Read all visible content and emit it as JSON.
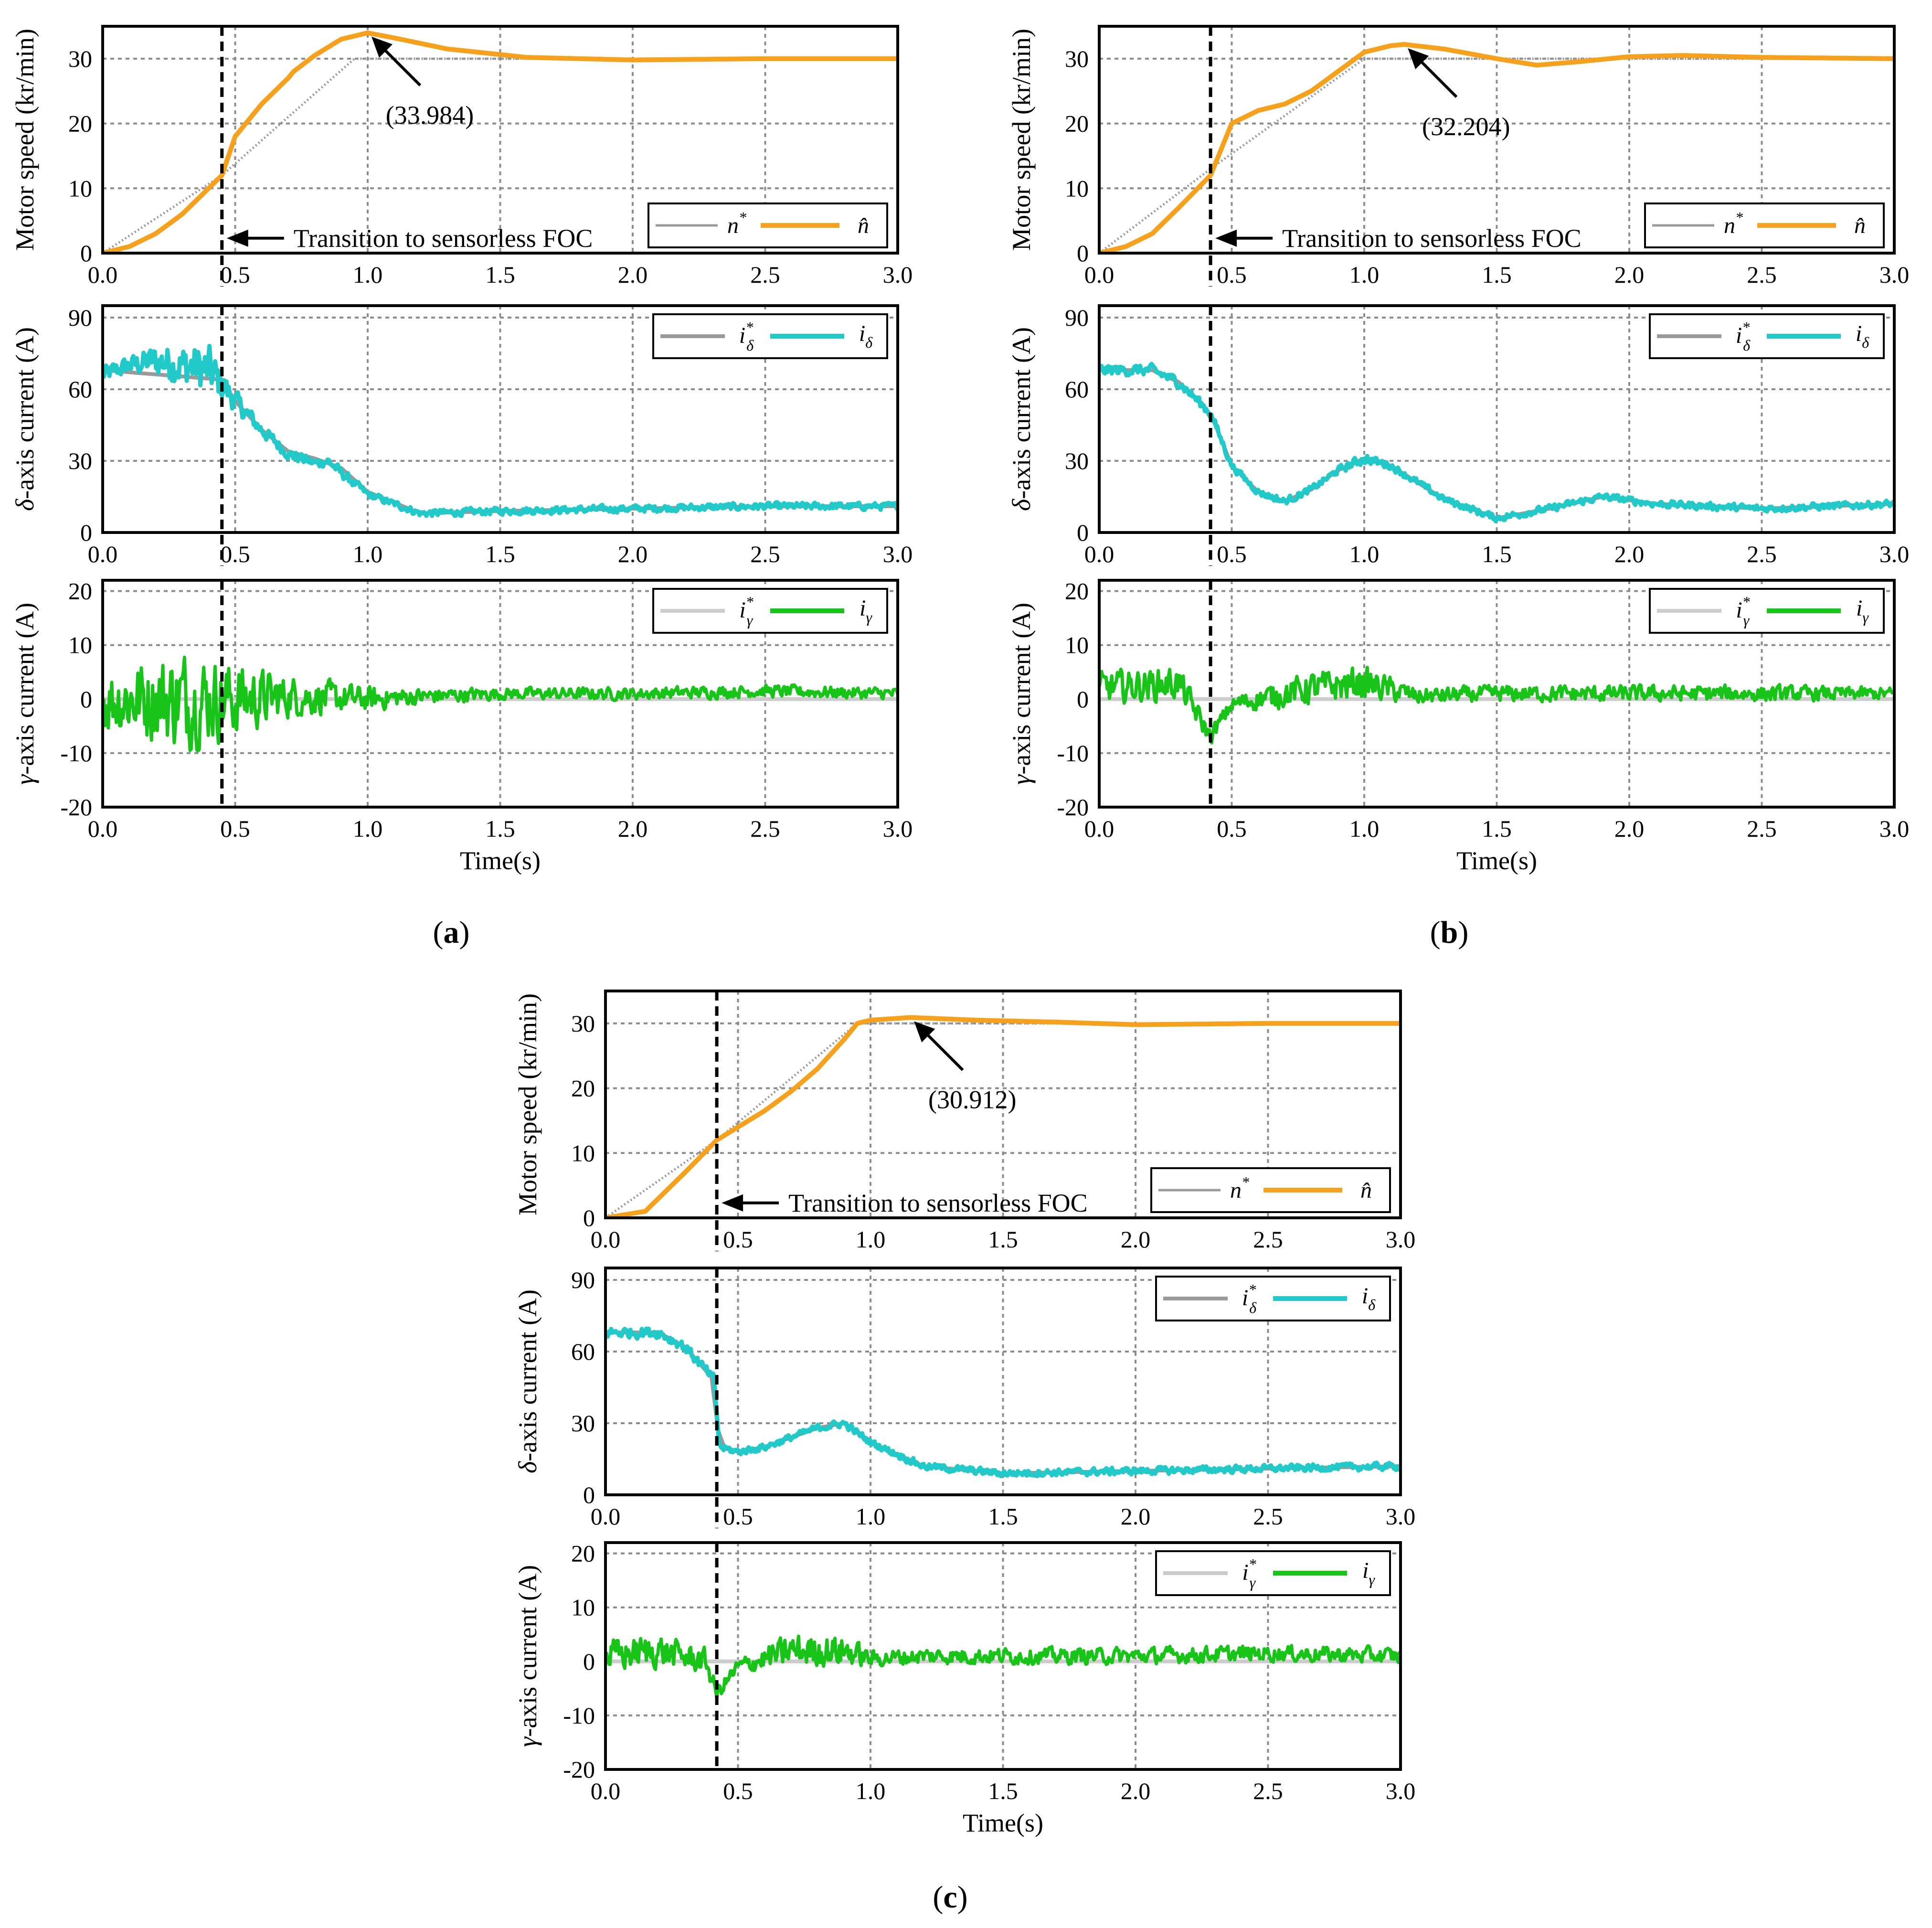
{
  "figure": {
    "common": {
      "x_label": "Time(s)",
      "x_range": [
        0,
        3
      ],
      "x_ticks": [
        "0.0",
        "0.5",
        "1.0",
        "1.5",
        "2.0",
        "2.5",
        "3.0"
      ],
      "transition_label": "Transition to sensorless FOC",
      "speed": {
        "ylabel": "Motor speed (kr/min)",
        "y_range": [
          0,
          35
        ],
        "y_ticks": [
          "0",
          "10",
          "20",
          "30"
        ],
        "legend_ref": "n",
        "legend_ref_sup": "*",
        "legend_est": "n̂"
      },
      "delta": {
        "ylabel_symbol": "δ",
        "ylabel_rest": "-axis current (A)",
        "y_range": [
          0,
          95
        ],
        "y_ticks": [
          "0",
          "30",
          "60",
          "90"
        ],
        "legend_ref": "i",
        "legend_ref_sub": "δ",
        "legend_ref_sup": "*",
        "legend_meas": "i",
        "legend_meas_sub": "δ"
      },
      "gamma": {
        "ylabel_symbol": "γ",
        "ylabel_rest": "-axis current (A)",
        "y_range": [
          -20,
          22
        ],
        "y_ticks": [
          "-20",
          "-10",
          "0",
          "10",
          "20"
        ],
        "legend_ref": "i",
        "legend_ref_sub": "γ",
        "legend_ref_sup": "*",
        "legend_meas": "i",
        "legend_meas_sub": "γ"
      }
    },
    "colors": {
      "reference": "#9a9a9a",
      "speed": "#f5a11d",
      "delta": "#22c9c9",
      "gamma": "#19c419",
      "grid": "#8c8c8c"
    },
    "captions": [
      "a",
      "b",
      "c"
    ]
  },
  "chart_data": [
    {
      "type": "line",
      "panel": "a",
      "transition_time": 0.45,
      "peak_annotation": "(33.984)",
      "peak_time": 1.0,
      "peak_value": 33.984,
      "speed": {
        "reference": {
          "name": "n*",
          "x": [
            0,
            0.45,
            0.95,
            3.0
          ],
          "y": [
            0,
            12,
            30,
            30
          ]
        },
        "estimate": {
          "name": "n̂",
          "x": [
            0,
            0.1,
            0.2,
            0.3,
            0.4,
            0.45,
            0.5,
            0.6,
            0.7,
            0.72,
            0.8,
            0.9,
            1.0,
            1.1,
            1.3,
            1.6,
            2.0,
            2.5,
            3.0
          ],
          "y": [
            0,
            1,
            3,
            6,
            10,
            12,
            18,
            23,
            27,
            28,
            30.5,
            33,
            33.984,
            33.2,
            31.5,
            30.2,
            29.8,
            30,
            30
          ]
        }
      },
      "delta": {
        "reference": {
          "name": "iδ*",
          "x": [
            0,
            0.45,
            0.5,
            0.6,
            0.7,
            0.8,
            0.9,
            1.0,
            1.2,
            1.5,
            2.0,
            2.5,
            3.0
          ],
          "y": [
            68,
            64,
            55,
            43,
            34,
            31,
            27,
            17,
            8,
            9,
            10,
            11,
            11
          ]
        },
        "measured": {
          "name": "iδ",
          "x": [
            0,
            0.1,
            0.2,
            0.3,
            0.4,
            0.45,
            0.5,
            0.6,
            0.7,
            0.8,
            0.85,
            0.9,
            1.0,
            1.2,
            1.5,
            2.0,
            2.5,
            3.0
          ],
          "y": [
            66,
            70,
            72,
            70,
            68,
            62,
            55,
            43,
            33,
            29,
            30,
            25,
            16,
            8,
            9,
            10,
            11,
            11
          ],
          "noise": [
            5,
            5,
            9,
            12,
            14,
            10,
            6,
            4,
            3,
            3,
            3,
            3,
            2,
            2,
            2,
            2,
            2,
            2
          ]
        }
      },
      "gamma": {
        "reference": {
          "name": "iγ*",
          "x": [
            0,
            3.0
          ],
          "y": [
            0,
            0
          ]
        },
        "measured": {
          "name": "iγ",
          "x": [
            0,
            0.3,
            0.5,
            0.7,
            1.0,
            1.2,
            1.5,
            2.0,
            2.5,
            3.0
          ],
          "y": [
            0,
            0,
            0,
            0.5,
            0,
            0.5,
            1,
            1,
            1.5,
            1
          ],
          "noise": [
            8,
            12,
            9,
            5,
            3,
            2,
            1.5,
            1.5,
            1.5,
            1.5
          ]
        }
      }
    },
    {
      "type": "line",
      "panel": "b",
      "transition_time": 0.42,
      "peak_annotation": "(32.204)",
      "peak_time": 1.15,
      "peak_value": 32.204,
      "speed": {
        "reference": {
          "name": "n*",
          "x": [
            0,
            0.42,
            1.0,
            3.0
          ],
          "y": [
            0,
            13,
            30,
            30
          ]
        },
        "estimate": {
          "name": "n̂",
          "x": [
            0,
            0.1,
            0.2,
            0.3,
            0.42,
            0.45,
            0.5,
            0.6,
            0.7,
            0.8,
            0.9,
            1.0,
            1.1,
            1.15,
            1.3,
            1.5,
            1.65,
            1.8,
            2.0,
            2.2,
            2.5,
            3.0
          ],
          "y": [
            0,
            1,
            3,
            7,
            12,
            15,
            20,
            22,
            23,
            25,
            28,
            31,
            32,
            32.204,
            31.5,
            30,
            29,
            29.5,
            30.3,
            30.5,
            30.2,
            30
          ]
        }
      },
      "delta": {
        "reference": {
          "name": "iδ*",
          "x": [
            0,
            0.2,
            0.3,
            0.42,
            0.5,
            0.6,
            0.7,
            0.8,
            0.9,
            1.0,
            1.1,
            1.3,
            1.5,
            1.7,
            1.9,
            2.1,
            2.5,
            3.0
          ],
          "y": [
            68,
            68,
            63,
            50,
            28,
            17,
            13,
            18,
            26,
            31,
            28,
            14,
            6,
            10,
            15,
            12,
            10,
            12
          ]
        },
        "measured": {
          "name": "iδ",
          "x": [
            0,
            0.2,
            0.3,
            0.42,
            0.5,
            0.6,
            0.7,
            0.8,
            0.9,
            1.0,
            1.1,
            1.3,
            1.5,
            1.7,
            1.9,
            2.1,
            2.5,
            3.0
          ],
          "y": [
            68,
            68,
            63,
            50,
            28,
            17,
            13,
            18,
            26,
            31,
            28,
            14,
            6,
            10,
            15,
            12,
            10,
            12
          ],
          "noise": [
            3,
            3,
            3,
            3,
            2,
            2,
            2,
            2,
            2,
            3,
            2,
            2,
            2,
            2,
            2,
            2,
            2,
            2
          ]
        }
      },
      "gamma": {
        "reference": {
          "name": "iγ*",
          "x": [
            0,
            3.0
          ],
          "y": [
            0,
            0
          ]
        },
        "measured": {
          "name": "iγ",
          "x": [
            0,
            0.3,
            0.42,
            0.5,
            0.8,
            1.0,
            1.2,
            1.5,
            2.0,
            2.5,
            3.0
          ],
          "y": [
            2,
            3,
            -7,
            -1,
            2,
            3,
            0.5,
            1,
            1,
            1,
            1
          ],
          "noise": [
            4,
            4,
            2,
            2,
            4,
            4,
            2,
            2,
            2,
            2,
            1.5
          ]
        }
      }
    },
    {
      "type": "line",
      "panel": "c",
      "transition_time": 0.42,
      "peak_annotation": "(30.912)",
      "peak_time": 1.15,
      "peak_value": 30.912,
      "speed": {
        "reference": {
          "name": "n*",
          "x": [
            0,
            0.42,
            0.95,
            3.0
          ],
          "y": [
            0,
            12,
            30,
            30
          ]
        },
        "estimate": {
          "name": "n̂",
          "x": [
            0,
            0.15,
            0.2,
            0.3,
            0.42,
            0.5,
            0.6,
            0.7,
            0.8,
            0.9,
            0.95,
            1.0,
            1.15,
            1.4,
            1.7,
            2.0,
            2.5,
            3.0
          ],
          "y": [
            0,
            1,
            3,
            7,
            12,
            14,
            16.5,
            19.5,
            23,
            27.5,
            30,
            30.5,
            30.912,
            30.5,
            30.2,
            29.8,
            30,
            30
          ]
        }
      },
      "delta": {
        "reference": {
          "name": "iδ*",
          "x": [
            0,
            0.2,
            0.3,
            0.41,
            0.43,
            0.5,
            0.6,
            0.7,
            0.8,
            0.9,
            1.0,
            1.2,
            1.5,
            2.0,
            2.5,
            3.0
          ],
          "y": [
            68,
            68,
            62,
            48,
            20,
            18,
            20,
            24,
            28,
            30,
            22,
            12,
            9,
            10,
            11,
            12
          ]
        },
        "measured": {
          "name": "iδ",
          "x": [
            0,
            0.2,
            0.3,
            0.41,
            0.43,
            0.5,
            0.6,
            0.7,
            0.8,
            0.9,
            1.0,
            1.2,
            1.5,
            2.0,
            2.5,
            3.0
          ],
          "y": [
            68,
            68,
            62,
            48,
            20,
            18,
            20,
            24,
            28,
            30,
            22,
            12,
            9,
            10,
            11,
            12
          ],
          "noise": [
            3,
            3,
            3,
            3,
            2,
            2,
            2,
            2,
            2,
            2,
            2,
            2,
            2,
            2,
            2,
            2
          ]
        }
      },
      "gamma": {
        "reference": {
          "name": "iγ*",
          "x": [
            0,
            3.0
          ],
          "y": [
            0,
            0
          ]
        },
        "measured": {
          "name": "iγ",
          "x": [
            0,
            0.2,
            0.38,
            0.42,
            0.5,
            0.7,
            0.9,
            1.0,
            1.2,
            1.5,
            2.0,
            2.5,
            3.0
          ],
          "y": [
            1,
            2,
            0,
            -6,
            -1,
            2,
            2,
            0.5,
            1,
            1,
            1,
            1.5,
            1
          ],
          "noise": [
            4,
            4,
            3,
            2,
            2,
            4,
            4,
            2,
            2,
            2,
            2,
            2,
            2
          ]
        }
      }
    }
  ]
}
